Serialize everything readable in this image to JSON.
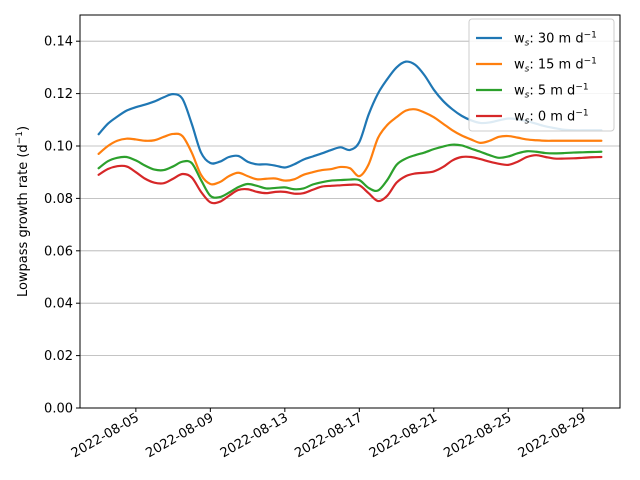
{
  "chart_data": {
    "type": "line",
    "title": "",
    "xlabel": "",
    "ylabel": "Lowpass growth rate (d",
    "ylabel_sup": "−1",
    "ylabel_end": ")",
    "ylim": [
      0.0,
      0.15
    ],
    "xlim": [
      "2022-08-02",
      "2022-08-31"
    ],
    "y_ticks": [
      0.0,
      0.02,
      0.04,
      0.06,
      0.08,
      0.1,
      0.12,
      0.14
    ],
    "y_tick_labels": [
      "0.00",
      "0.02",
      "0.04",
      "0.06",
      "0.08",
      "0.10",
      "0.12",
      "0.14"
    ],
    "x_ticks": [
      "2022-08-05",
      "2022-08-09",
      "2022-08-13",
      "2022-08-17",
      "2022-08-21",
      "2022-08-25",
      "2022-08-29"
    ],
    "x_tick_labels": [
      "2022-08-05",
      "2022-08-09",
      "2022-08-13",
      "2022-08-17",
      "2022-08-21",
      "2022-08-25",
      "2022-08-29"
    ],
    "grid": "horizontal",
    "legend_position": "top-right",
    "x": [
      "2022-08-03",
      "2022-08-03T12:00",
      "2022-08-04",
      "2022-08-04T12:00",
      "2022-08-05",
      "2022-08-05T12:00",
      "2022-08-06",
      "2022-08-06T12:00",
      "2022-08-07",
      "2022-08-07T12:00",
      "2022-08-08",
      "2022-08-08T12:00",
      "2022-08-09",
      "2022-08-09T12:00",
      "2022-08-10",
      "2022-08-10T12:00",
      "2022-08-11",
      "2022-08-11T12:00",
      "2022-08-12",
      "2022-08-12T12:00",
      "2022-08-13",
      "2022-08-13T12:00",
      "2022-08-14",
      "2022-08-14T12:00",
      "2022-08-15",
      "2022-08-15T12:00",
      "2022-08-16",
      "2022-08-16T12:00",
      "2022-08-17",
      "2022-08-17T12:00",
      "2022-08-18",
      "2022-08-18T12:00",
      "2022-08-19",
      "2022-08-19T12:00",
      "2022-08-20",
      "2022-08-20T12:00",
      "2022-08-21",
      "2022-08-21T12:00",
      "2022-08-22",
      "2022-08-22T12:00",
      "2022-08-23",
      "2022-08-23T12:00",
      "2022-08-24",
      "2022-08-24T12:00",
      "2022-08-25",
      "2022-08-25T12:00",
      "2022-08-26",
      "2022-08-26T12:00",
      "2022-08-27",
      "2022-08-27T12:00",
      "2022-08-28",
      "2022-08-28T12:00",
      "2022-08-29",
      "2022-08-29T12:00",
      "2022-08-30"
    ],
    "series": [
      {
        "name_main": "w",
        "name_sub": "s",
        "name_rest": ":  30 m d",
        "name_sup": "−1",
        "color": "#1f77b4",
        "values": [
          0.1045,
          0.1085,
          0.1112,
          0.1135,
          0.1148,
          0.1158,
          0.117,
          0.1186,
          0.1198,
          0.118,
          0.1085,
          0.0975,
          0.0935,
          0.094,
          0.0958,
          0.0962,
          0.094,
          0.093,
          0.093,
          0.0925,
          0.0918,
          0.093,
          0.0948,
          0.096,
          0.0972,
          0.0985,
          0.0995,
          0.0985,
          0.1015,
          0.112,
          0.12,
          0.1255,
          0.13,
          0.1322,
          0.131,
          0.127,
          0.1215,
          0.1172,
          0.114,
          0.1115,
          0.1098,
          0.1088,
          0.109,
          0.1098,
          0.1105,
          0.1102,
          0.1095,
          0.1085,
          0.1075,
          0.1068,
          0.1062,
          0.106,
          0.106,
          0.106,
          0.106
        ]
      },
      {
        "name_main": "w",
        "name_sub": "s",
        "name_rest": ":  15 m d",
        "name_sup": "−1",
        "color": "#ff7f0e",
        "values": [
          0.097,
          0.1,
          0.102,
          0.1028,
          0.1025,
          0.102,
          0.1022,
          0.1035,
          0.1046,
          0.1038,
          0.0975,
          0.089,
          0.0855,
          0.0862,
          0.0885,
          0.0898,
          0.0885,
          0.0873,
          0.0875,
          0.0876,
          0.0868,
          0.0873,
          0.089,
          0.09,
          0.0908,
          0.0912,
          0.092,
          0.0915,
          0.0885,
          0.093,
          0.103,
          0.108,
          0.111,
          0.1135,
          0.114,
          0.1128,
          0.111,
          0.1085,
          0.106,
          0.104,
          0.1025,
          0.1012,
          0.102,
          0.1035,
          0.1038,
          0.1032,
          0.1025,
          0.1022,
          0.102,
          0.102,
          0.102,
          0.102,
          0.102,
          0.102,
          0.102
        ]
      },
      {
        "name_main": "w",
        "name_sub": "s",
        "name_rest": ":  5 m d",
        "name_sup": "−1",
        "color": "#2ca02c",
        "values": [
          0.0915,
          0.0942,
          0.0955,
          0.0958,
          0.0945,
          0.0925,
          0.091,
          0.0908,
          0.0922,
          0.094,
          0.0935,
          0.087,
          0.081,
          0.0805,
          0.0822,
          0.0843,
          0.0855,
          0.0848,
          0.0838,
          0.084,
          0.0842,
          0.0835,
          0.0838,
          0.0853,
          0.0862,
          0.0868,
          0.087,
          0.0872,
          0.087,
          0.084,
          0.083,
          0.087,
          0.0928,
          0.0952,
          0.0965,
          0.0975,
          0.0988,
          0.0998,
          0.1005,
          0.1002,
          0.099,
          0.0978,
          0.0965,
          0.0955,
          0.096,
          0.0972,
          0.098,
          0.0978,
          0.0973,
          0.0972,
          0.0973,
          0.0975,
          0.0976,
          0.0977,
          0.0978
        ]
      },
      {
        "name_main": "w",
        "name_sub": "s",
        "name_rest": ":  0 m d",
        "name_sup": "−1",
        "color": "#d62728",
        "values": [
          0.089,
          0.0912,
          0.0923,
          0.0922,
          0.09,
          0.0875,
          0.086,
          0.0858,
          0.0875,
          0.0893,
          0.088,
          0.0825,
          0.0785,
          0.0787,
          0.081,
          0.0832,
          0.0835,
          0.0825,
          0.082,
          0.0825,
          0.0825,
          0.0818,
          0.082,
          0.0833,
          0.0845,
          0.0848,
          0.085,
          0.0852,
          0.085,
          0.082,
          0.079,
          0.081,
          0.086,
          0.0885,
          0.0895,
          0.0898,
          0.0903,
          0.092,
          0.0945,
          0.0958,
          0.0958,
          0.095,
          0.094,
          0.0932,
          0.0928,
          0.094,
          0.0958,
          0.0965,
          0.0958,
          0.0952,
          0.0952,
          0.0953,
          0.0955,
          0.0957,
          0.0958
        ]
      }
    ]
  }
}
